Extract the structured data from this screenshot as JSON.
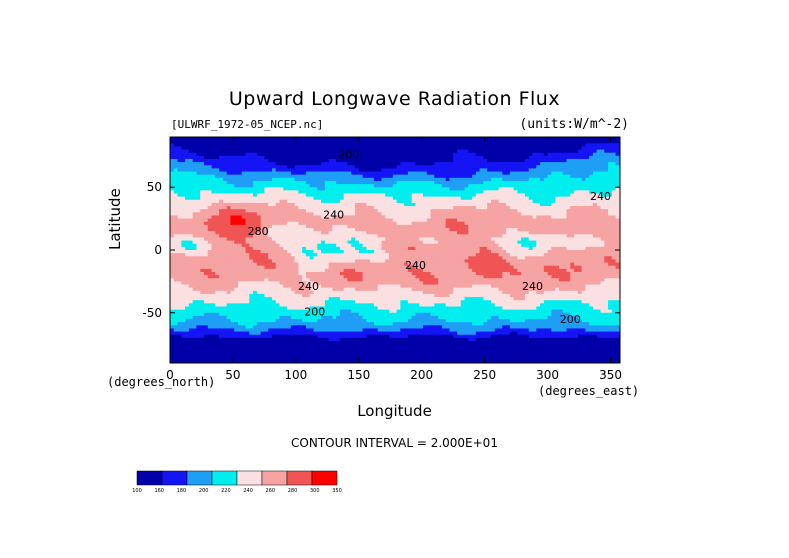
{
  "chart_data": {
    "type": "heatmap",
    "title": "Upward Longwave Radiation Flux",
    "dataset": "[ULWRF_1972-05_NCEP.nc]",
    "units": "(units:W/m^-2)",
    "xlabel": "Longitude",
    "ylabel": "Latitude",
    "x_unit_label": "(degrees_east)",
    "y_unit_label": "(degrees_north)",
    "xlim": [
      0,
      357.5
    ],
    "ylim": [
      -90,
      90
    ],
    "x_ticks": [
      0,
      50,
      100,
      150,
      200,
      250,
      300,
      350
    ],
    "y_ticks": [
      -50,
      0,
      50
    ],
    "contour_interval_text": "CONTOUR INTERVAL = 2.000E+01",
    "contour_levels": [
      100,
      160,
      180,
      200,
      220,
      240,
      260,
      280,
      300,
      350
    ],
    "colorbar": {
      "ticks": [
        "100",
        "160",
        "180",
        "200",
        "220",
        "240",
        "260",
        "280",
        "300",
        "350"
      ],
      "colors": [
        "#0000a8",
        "#1414f5",
        "#1e9ef5",
        "#00eeee",
        "#fae0e0",
        "#f5a3a3",
        "#f05555",
        "#ff0000"
      ]
    },
    "contour_labels": [
      {
        "value": "200",
        "lon": 142,
        "lat": 73
      },
      {
        "value": "240",
        "lon": 342,
        "lat": 40
      },
      {
        "value": "240",
        "lon": 130,
        "lat": 25
      },
      {
        "value": "280",
        "lon": 70,
        "lat": 12
      },
      {
        "value": "240",
        "lon": 195,
        "lat": -15
      },
      {
        "value": "240",
        "lon": 110,
        "lat": -32
      },
      {
        "value": "240",
        "lon": 288,
        "lat": -32
      },
      {
        "value": "200",
        "lon": 115,
        "lat": -52
      },
      {
        "value": "200",
        "lon": 318,
        "lat": -58
      }
    ]
  }
}
